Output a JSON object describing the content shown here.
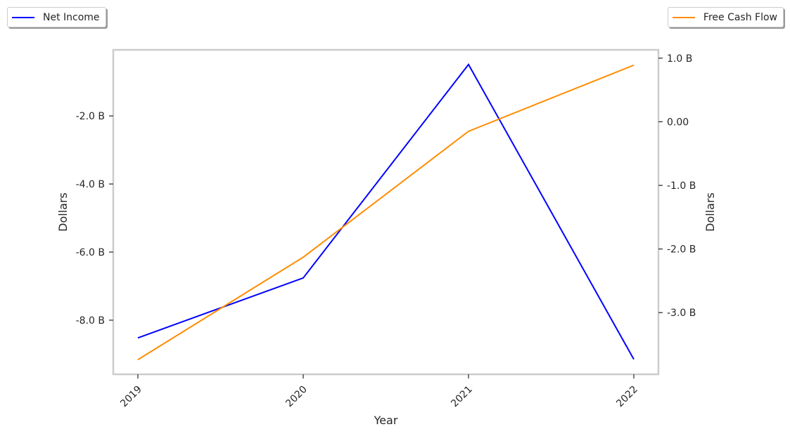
{
  "chart_data": {
    "type": "line",
    "categories": [
      "2019",
      "2020",
      "2021",
      "2022"
    ],
    "xlabel": "Year",
    "series": [
      {
        "name": "Net Income",
        "axis": "left",
        "color": "#0000ff",
        "values": [
          -8.52,
          -6.76,
          -0.49,
          -9.15
        ]
      },
      {
        "name": "Free Cash Flow",
        "axis": "right",
        "color": "#ff8c00",
        "values": [
          -3.74,
          -2.13,
          -0.15,
          0.89
        ]
      }
    ],
    "left_axis": {
      "label": "Dollars",
      "unit": "B",
      "ylim": [
        -9.59,
        -0.06
      ],
      "ticks": [
        -2,
        -4,
        -6,
        -8
      ],
      "tick_labels": [
        "-2.0 B",
        "-4.0 B",
        "-6.0 B",
        "-8.0 B"
      ]
    },
    "right_axis": {
      "label": "Dollars",
      "unit": "B",
      "ylim": [
        -3.97,
        1.13
      ],
      "ticks": [
        1,
        0,
        -1,
        -2,
        -3
      ],
      "tick_labels": [
        "1.0 B",
        "0.00",
        "-1.0 B",
        "-2.0 B",
        "-3.0 B"
      ]
    },
    "legend": [
      {
        "label": "Net Income",
        "placement": "top-left"
      },
      {
        "label": "Free Cash Flow",
        "placement": "top-right"
      }
    ],
    "grid": false
  }
}
